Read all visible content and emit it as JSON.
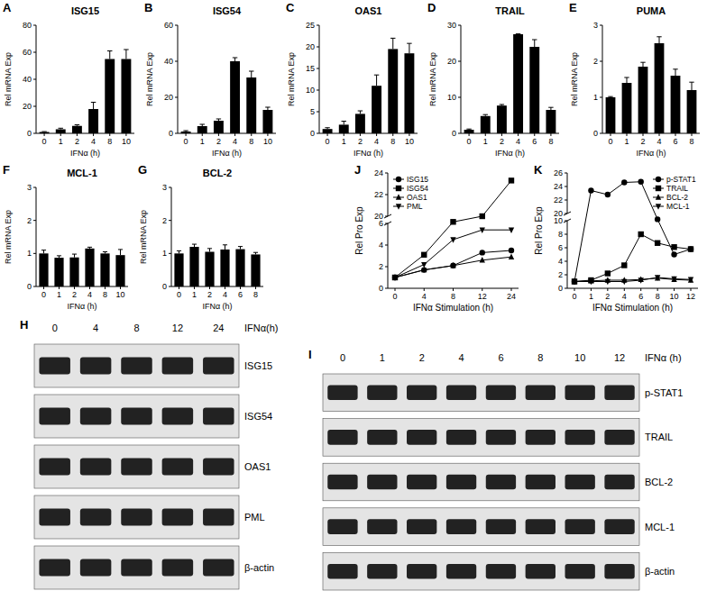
{
  "chart_data": [
    {
      "panel": "A",
      "type": "bar",
      "title": "ISG15",
      "x_label": "IFNα (h)",
      "y_label": "Rel mRNA Exp",
      "categories": [
        0,
        1,
        2,
        4,
        8,
        10
      ],
      "values": [
        1,
        3,
        5.5,
        18,
        55,
        55
      ],
      "errors": [
        0.3,
        0.8,
        0.8,
        5,
        6,
        7
      ],
      "color": "#000000",
      "ylim": [
        0,
        80
      ],
      "yticks": [
        0,
        20,
        40,
        60,
        80
      ]
    },
    {
      "panel": "B",
      "type": "bar",
      "title": "ISG54",
      "x_label": "IFNα (h)",
      "y_label": "Rel mRNA Exp",
      "categories": [
        0,
        1,
        2,
        4,
        8,
        10
      ],
      "values": [
        1,
        4,
        7,
        40,
        31,
        13
      ],
      "errors": [
        0.5,
        1,
        1,
        2,
        3.5,
        1.5
      ],
      "color": "#000000",
      "ylim": [
        0,
        60
      ],
      "yticks": [
        0,
        20,
        40,
        60
      ]
    },
    {
      "panel": "C",
      "type": "bar",
      "title": "OAS1",
      "x_label": "IFNα (h)",
      "y_label": "Rel mRNA Exp",
      "categories": [
        0,
        1,
        2,
        4,
        8,
        10
      ],
      "values": [
        1,
        2,
        4.5,
        11,
        19.5,
        18.5
      ],
      "errors": [
        0.3,
        0.8,
        0.7,
        2.5,
        2.5,
        2.3
      ],
      "color": "#000000",
      "ylim": [
        0,
        25
      ],
      "yticks": [
        0,
        5,
        10,
        15,
        20,
        25
      ]
    },
    {
      "panel": "D",
      "type": "bar",
      "title": "TRAIL",
      "x_label": "IFNα (h)",
      "y_label": "Rel mRNA Exp",
      "categories": [
        0,
        1,
        2,
        4,
        6,
        8
      ],
      "values": [
        1,
        4.8,
        7.7,
        27.5,
        24,
        6.5
      ],
      "errors": [
        0.2,
        0.4,
        0.3,
        0.1,
        2,
        0.7
      ],
      "color": "#000000",
      "ylim": [
        0,
        30
      ],
      "yticks": [
        0,
        10,
        20,
        30
      ]
    },
    {
      "panel": "E",
      "type": "bar",
      "title": "PUMA",
      "x_label": "IFNα (h)",
      "y_label": "Rel mRNA Exp",
      "categories": [
        0,
        1,
        2,
        4,
        6,
        8
      ],
      "values": [
        1,
        1.4,
        1.85,
        2.5,
        1.6,
        1.2
      ],
      "errors": [
        0.02,
        0.15,
        0.12,
        0.18,
        0.18,
        0.22
      ],
      "color": "#000000",
      "ylim": [
        0,
        3
      ],
      "yticks": [
        0,
        1,
        2,
        3
      ]
    },
    {
      "panel": "F",
      "type": "bar",
      "title": "MCL-1",
      "x_label": "IFNα (h)",
      "y_label": "Rel mRNA Exp",
      "categories": [
        0,
        1,
        2,
        4,
        8,
        10
      ],
      "values": [
        1,
        0.87,
        0.88,
        1.15,
        1,
        0.95
      ],
      "errors": [
        0.1,
        0.06,
        0.1,
        0.04,
        0.05,
        0.17
      ],
      "color": "#000000",
      "ylim": [
        0,
        3
      ],
      "yticks": [
        0,
        1,
        2,
        3
      ]
    },
    {
      "panel": "G",
      "type": "bar",
      "title": "BCL-2",
      "x_label": "IFNα (h)",
      "y_label": "Rel mRNA Exp",
      "categories": [
        0,
        1,
        2,
        4,
        6,
        8
      ],
      "values": [
        1,
        1.2,
        1.05,
        1.12,
        1.13,
        0.97
      ],
      "errors": [
        0.08,
        0.08,
        0.1,
        0.14,
        0.08,
        0.06
      ],
      "color": "#000000",
      "ylim": [
        0,
        3
      ],
      "yticks": [
        0,
        1,
        2,
        3
      ]
    },
    {
      "panel": "H",
      "type": "blot",
      "x_label": "IFNα(h)",
      "categories": [
        0,
        4,
        8,
        12,
        24
      ],
      "rows": [
        "ISG15",
        "ISG54",
        "OAS1",
        "PML",
        "β-actin"
      ]
    },
    {
      "panel": "I",
      "type": "blot",
      "x_label": "IFNα (h)",
      "categories": [
        0,
        1,
        2,
        4,
        6,
        8,
        10,
        12
      ],
      "rows": [
        "p-STAT1",
        "TRAIL",
        "BCL-2",
        "MCL-1",
        "β-actin"
      ]
    },
    {
      "panel": "J",
      "type": "line",
      "x_label": "IFNα Stimulation (h)",
      "y_label": "Rel Pro Exp",
      "categories": [
        0,
        4,
        8,
        12,
        24
      ],
      "ylim": [
        0,
        24
      ],
      "yticks": [
        0,
        2,
        4,
        6,
        20,
        22,
        24
      ],
      "legend": "top-left",
      "series": [
        {
          "name": "ISG15",
          "color": "#000000",
          "marker": "circle",
          "values": [
            1,
            1.7,
            2.1,
            3.3,
            3.5
          ]
        },
        {
          "name": "ISG54",
          "color": "#000000",
          "marker": "square",
          "values": [
            1,
            3.1,
            9,
            20,
            23.3
          ]
        },
        {
          "name": "OAS1",
          "color": "#000000",
          "marker": "triangle",
          "values": [
            1,
            1.7,
            2.1,
            2.6,
            2.9
          ]
        },
        {
          "name": "PML",
          "color": "#000000",
          "marker": "triangle-down",
          "values": [
            1,
            2.2,
            4.5,
            5.4,
            5.4
          ]
        }
      ]
    },
    {
      "panel": "K",
      "type": "line",
      "x_label": "IFNα Stimulation (h)",
      "y_label": "Rel Pro Exp",
      "categories": [
        0,
        1,
        2,
        4,
        6,
        8,
        10,
        12
      ],
      "ylim": [
        0,
        26
      ],
      "yticks": [
        0,
        2,
        4,
        6,
        8,
        10,
        20,
        22,
        24,
        26
      ],
      "legend": "top-right",
      "series": [
        {
          "name": "p-STAT1",
          "color": "#000000",
          "marker": "circle",
          "values": [
            1,
            23.4,
            22.8,
            24.6,
            24.7,
            12,
            5,
            5.8
          ]
        },
        {
          "name": "TRAIL",
          "color": "#000000",
          "marker": "square",
          "values": [
            1,
            1.2,
            2.2,
            3.4,
            8,
            6.7,
            6.1,
            5.8
          ]
        },
        {
          "name": "BCL-2",
          "color": "#000000",
          "marker": "triangle",
          "values": [
            1,
            1.1,
            1.2,
            1.2,
            1.3,
            1.5,
            1.3,
            1.2
          ]
        },
        {
          "name": "MCL-1",
          "color": "#000000",
          "marker": "triangle-down",
          "values": [
            1,
            1,
            1,
            1,
            1.2,
            1.6,
            1.4,
            1.3
          ]
        }
      ]
    }
  ]
}
